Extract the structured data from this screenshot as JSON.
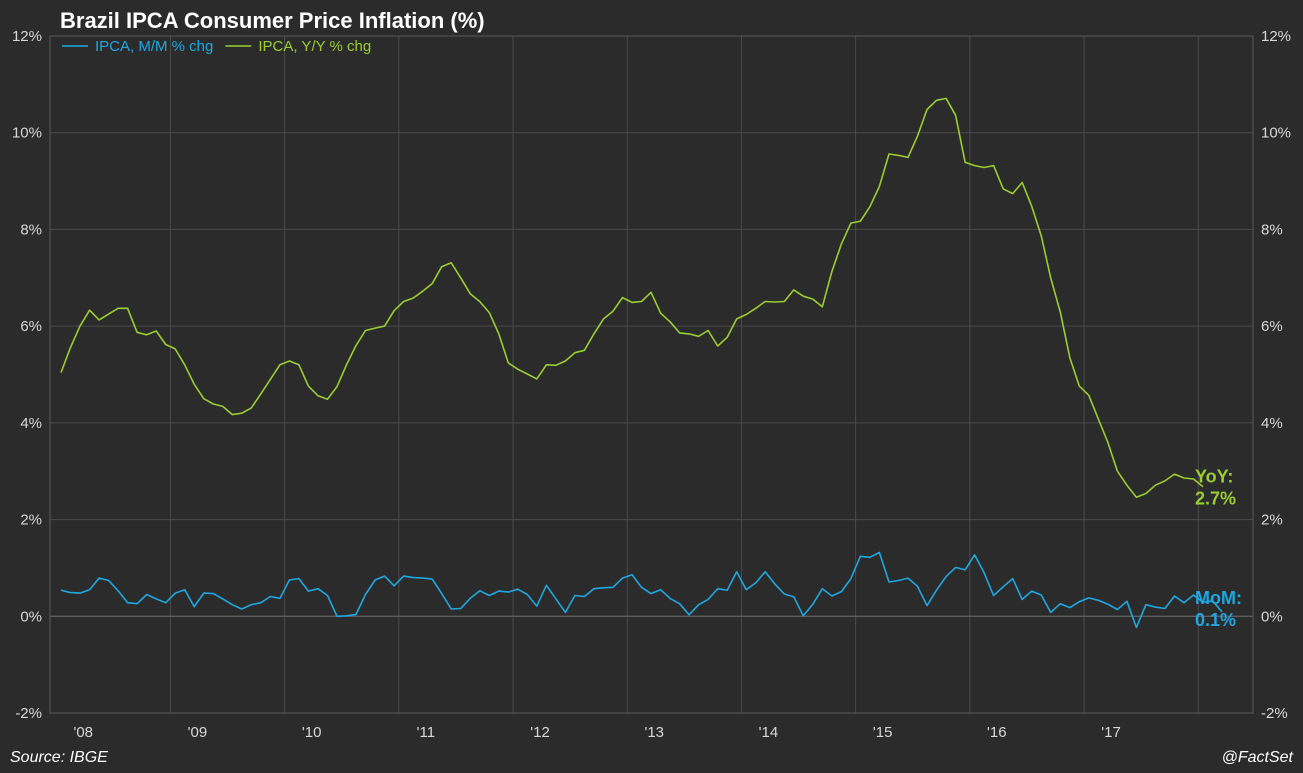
{
  "chart_data": {
    "type": "line",
    "title": "Brazil IPCA Consumer Price Inflation (%)",
    "source": "Source: IBGE",
    "credit": "@FactSet",
    "ylim": [
      -2,
      12
    ],
    "y_ticks": [
      "12%",
      "10%",
      "8%",
      "6%",
      "4%",
      "2%",
      "0%",
      "-2%"
    ],
    "y_tick_values": [
      12,
      10,
      8,
      6,
      4,
      2,
      0,
      -2
    ],
    "x_start": "2008-01",
    "x_ticks": [
      "'08",
      "'09",
      "'10",
      "'11",
      "'12",
      "'13",
      "'14",
      "'15",
      "'16",
      "'17"
    ],
    "grid": true,
    "legend_position": "top-left",
    "series": [
      {
        "name": "IPCA,  M/M % chg",
        "color": "#1ea7e1",
        "end_label": [
          "MoM:",
          "0.1%"
        ],
        "values": [
          0.54,
          0.49,
          0.48,
          0.55,
          0.79,
          0.74,
          0.53,
          0.28,
          0.26,
          0.45,
          0.36,
          0.28,
          0.48,
          0.55,
          0.2,
          0.48,
          0.47,
          0.36,
          0.24,
          0.15,
          0.24,
          0.28,
          0.41,
          0.37,
          0.75,
          0.78,
          0.52,
          0.57,
          0.43,
          0.0,
          0.01,
          0.04,
          0.45,
          0.75,
          0.83,
          0.63,
          0.83,
          0.8,
          0.79,
          0.77,
          0.47,
          0.15,
          0.16,
          0.37,
          0.53,
          0.43,
          0.52,
          0.5,
          0.56,
          0.45,
          0.21,
          0.64,
          0.36,
          0.08,
          0.43,
          0.41,
          0.57,
          0.59,
          0.6,
          0.79,
          0.86,
          0.6,
          0.47,
          0.55,
          0.37,
          0.26,
          0.03,
          0.24,
          0.35,
          0.57,
          0.54,
          0.92,
          0.55,
          0.69,
          0.92,
          0.67,
          0.46,
          0.4,
          0.01,
          0.25,
          0.57,
          0.42,
          0.51,
          0.78,
          1.24,
          1.22,
          1.32,
          0.71,
          0.74,
          0.79,
          0.62,
          0.22,
          0.54,
          0.82,
          1.01,
          0.96,
          1.27,
          0.9,
          0.43,
          0.61,
          0.78,
          0.35,
          0.52,
          0.44,
          0.08,
          0.26,
          0.18,
          0.3,
          0.38,
          0.33,
          0.25,
          0.14,
          0.31,
          -0.23,
          0.24,
          0.19,
          0.16,
          0.42,
          0.28,
          0.44,
          0.29,
          0.32,
          0.09
        ]
      },
      {
        "name": "IPCA,  Y/Y % chg",
        "color": "#9acd32",
        "end_label": [
          "YoY:",
          "2.7%"
        ],
        "values": [
          5.04,
          5.56,
          6.0,
          6.33,
          6.13,
          6.25,
          6.37,
          6.37,
          5.87,
          5.82,
          5.9,
          5.62,
          5.53,
          5.2,
          4.8,
          4.5,
          4.39,
          4.34,
          4.17,
          4.2,
          4.31,
          4.6,
          4.9,
          5.2,
          5.28,
          5.2,
          4.76,
          4.56,
          4.49,
          4.75,
          5.2,
          5.6,
          5.91,
          5.96,
          6.0,
          6.32,
          6.51,
          6.58,
          6.72,
          6.88,
          7.23,
          7.31,
          7.0,
          6.67,
          6.51,
          6.28,
          5.84,
          5.24,
          5.11,
          5.01,
          4.91,
          5.2,
          5.19,
          5.28,
          5.45,
          5.5,
          5.84,
          6.15,
          6.31,
          6.59,
          6.49,
          6.51,
          6.7,
          6.27,
          6.09,
          5.86,
          5.84,
          5.79,
          5.91,
          5.59,
          5.77,
          6.15,
          6.24,
          6.37,
          6.51,
          6.5,
          6.51,
          6.75,
          6.62,
          6.56,
          6.4,
          7.13,
          7.7,
          8.13,
          8.17,
          8.47,
          8.89,
          9.56,
          9.53,
          9.49,
          9.93,
          10.48,
          10.67,
          10.71,
          10.36,
          9.39,
          9.32,
          9.28,
          9.32,
          8.84,
          8.74,
          8.97,
          8.48,
          7.87,
          7.0,
          6.29,
          5.35,
          4.76,
          4.57,
          4.08,
          3.6,
          3.0,
          2.71,
          2.46,
          2.54,
          2.71,
          2.8,
          2.94,
          2.86,
          2.84,
          2.68
        ]
      }
    ]
  }
}
